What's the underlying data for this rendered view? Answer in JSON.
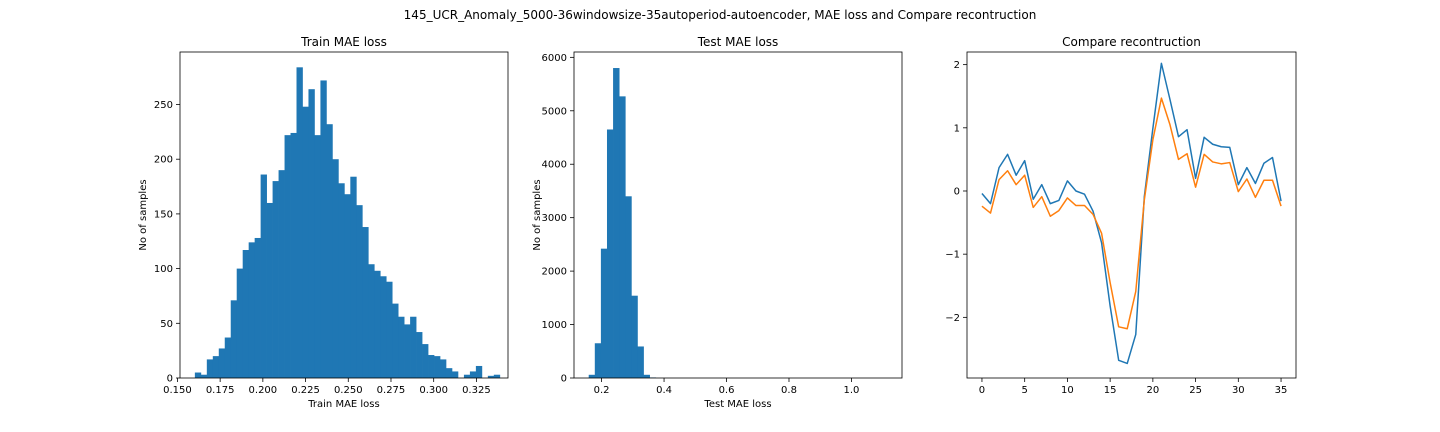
{
  "figure": {
    "suptitle": "145_UCR_Anomaly_5000-36windowsize-35autoperiod-autoencoder, MAE loss and Compare recontruction"
  },
  "colors": {
    "series_blue": "#1f77b4",
    "series_orange": "#ff7f0e",
    "axes": "#000000",
    "background": "#ffffff"
  },
  "chart_data": [
    {
      "type": "bar",
      "subtype": "histogram",
      "title": "Train MAE loss",
      "xlabel": "Train MAE loss",
      "ylabel": "No of samples",
      "xlim": [
        0.1515,
        0.3435
      ],
      "ylim": [
        0,
        298
      ],
      "xticks": [
        0.15,
        0.175,
        0.2,
        0.225,
        0.25,
        0.275,
        0.3,
        0.325
      ],
      "xtick_labels": [
        "0.150",
        "0.175",
        "0.200",
        "0.225",
        "0.250",
        "0.275",
        "0.300",
        "0.325"
      ],
      "yticks": [
        0,
        50,
        100,
        150,
        200,
        250
      ],
      "bin_start": 0.1602,
      "bin_width": 0.0035,
      "values": [
        5,
        3,
        17,
        20,
        27,
        37,
        71,
        100,
        117,
        124,
        128,
        186,
        160,
        180,
        190,
        222,
        224,
        284,
        248,
        264,
        222,
        272,
        232,
        200,
        178,
        168,
        184,
        158,
        138,
        104,
        98,
        93,
        88,
        68,
        56,
        49,
        56,
        42,
        31,
        21,
        20,
        17,
        9,
        6,
        0,
        3,
        6,
        11,
        0,
        2,
        3
      ]
    },
    {
      "type": "bar",
      "subtype": "histogram",
      "title": "Test MAE loss",
      "xlabel": "Test MAE loss",
      "ylabel": "No of samples",
      "xlim": [
        0.1117,
        1.1618
      ],
      "ylim": [
        0,
        6100
      ],
      "xticks": [
        0.2,
        0.4,
        0.6,
        0.8,
        1.0
      ],
      "xtick_labels": [
        "0.2",
        "0.4",
        "0.6",
        "0.8",
        "1.0"
      ],
      "yticks": [
        0,
        1000,
        2000,
        3000,
        4000,
        5000,
        6000
      ],
      "bin_start": 0.1588,
      "bin_width": 0.0195,
      "values": [
        60,
        650,
        2420,
        4650,
        5800,
        5270,
        3400,
        1540,
        590,
        60,
        10
      ]
    },
    {
      "type": "line",
      "title": "Compare recontruction",
      "xlabel": "",
      "ylabel": "",
      "xlim": [
        -1.75,
        36.75
      ],
      "ylim": [
        -2.96,
        2.2
      ],
      "xticks": [
        0,
        5,
        10,
        15,
        20,
        25,
        30,
        35
      ],
      "yticks": [
        -2,
        -1,
        0,
        1,
        2
      ],
      "ytick_labels": [
        "−2",
        "−1",
        "0",
        "1",
        "2"
      ],
      "x": [
        0,
        1,
        2,
        3,
        4,
        5,
        6,
        7,
        8,
        9,
        10,
        11,
        12,
        13,
        14,
        15,
        16,
        17,
        18,
        19,
        20,
        21,
        22,
        23,
        24,
        25,
        26,
        27,
        28,
        29,
        30,
        31,
        32,
        33,
        34,
        35
      ],
      "series": [
        {
          "values": [
            -0.04,
            -0.2,
            0.37,
            0.58,
            0.25,
            0.48,
            -0.13,
            0.1,
            -0.2,
            -0.15,
            0.16,
            0.0,
            -0.05,
            -0.32,
            -0.82,
            -1.82,
            -2.68,
            -2.73,
            -2.27,
            -0.09,
            0.99,
            2.02,
            1.45,
            0.86,
            0.97,
            0.2,
            0.85,
            0.74,
            0.7,
            0.69,
            0.1,
            0.37,
            0.12,
            0.44,
            0.53,
            -0.16
          ]
        },
        {
          "values": [
            -0.24,
            -0.35,
            0.18,
            0.32,
            0.1,
            0.25,
            -0.26,
            -0.09,
            -0.4,
            -0.31,
            -0.11,
            -0.23,
            -0.23,
            -0.37,
            -0.67,
            -1.45,
            -2.15,
            -2.18,
            -1.59,
            -0.14,
            0.81,
            1.47,
            1.05,
            0.5,
            0.59,
            0.06,
            0.58,
            0.46,
            0.43,
            0.45,
            -0.01,
            0.19,
            -0.1,
            0.17,
            0.17,
            -0.24
          ]
        }
      ]
    }
  ]
}
